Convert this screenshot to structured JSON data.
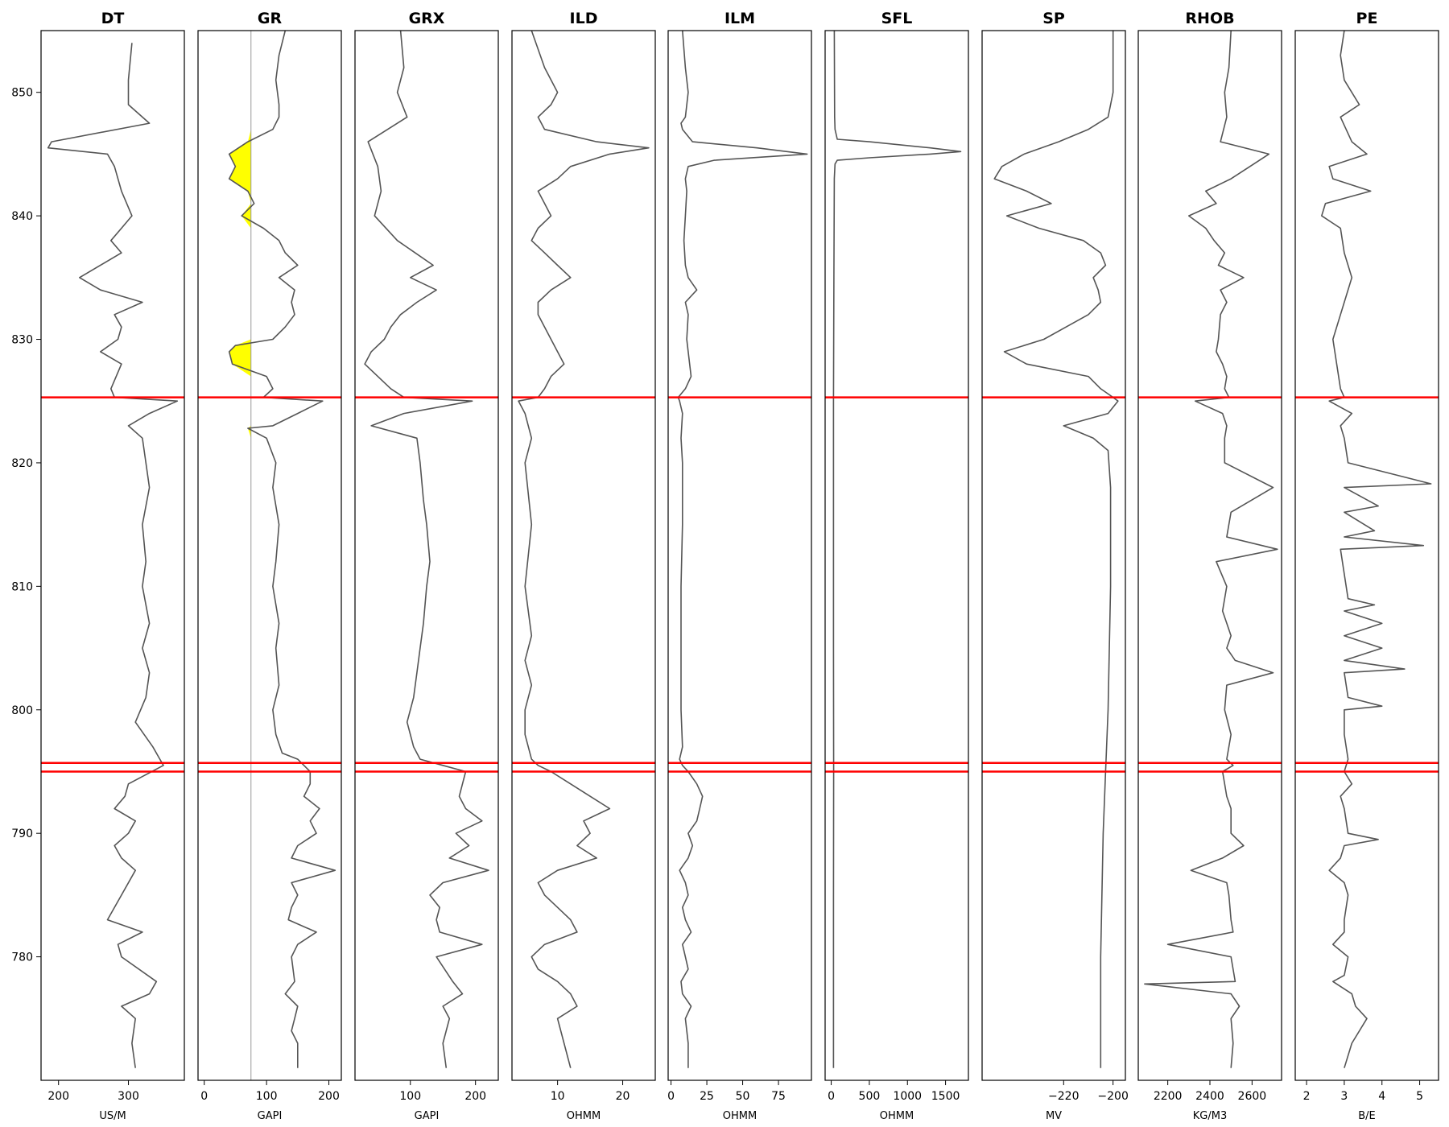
{
  "figure": {
    "type": "well-log",
    "depth_axis": {
      "ylim": [
        770,
        855
      ],
      "ticks": [
        780,
        790,
        800,
        810,
        820,
        830,
        840,
        850
      ]
    },
    "markers": [
      825.3,
      795.7,
      795.0
    ],
    "marker_color": "#ff0000",
    "curve_color": "#555555",
    "fill_color": "#ffff00"
  },
  "chart_data": [
    {
      "type": "line",
      "title": "DT",
      "xlabel": "US/M",
      "xlim": [
        175,
        380
      ],
      "ticks": [
        200,
        300
      ],
      "tick_labels": [
        "200",
        "300"
      ],
      "depth": [
        854,
        851,
        849,
        847.5,
        846,
        845.5,
        845,
        844,
        842,
        840,
        839,
        838,
        837,
        835,
        834,
        833,
        832,
        831,
        830,
        829,
        828,
        826,
        825.3,
        825,
        824,
        823,
        822,
        818,
        815,
        812,
        810,
        807,
        805,
        803,
        801,
        799,
        797,
        796,
        795.5,
        794,
        793,
        792,
        791,
        790,
        789,
        788,
        787,
        785,
        783,
        782,
        781,
        780,
        778,
        777,
        776,
        775,
        773,
        771
      ],
      "values": [
        305,
        300,
        300,
        330,
        190,
        185,
        270,
        280,
        290,
        305,
        290,
        275,
        290,
        230,
        260,
        320,
        280,
        290,
        285,
        260,
        290,
        275,
        280,
        370,
        330,
        300,
        320,
        330,
        320,
        325,
        320,
        330,
        320,
        330,
        325,
        310,
        335,
        345,
        350,
        300,
        295,
        280,
        310,
        300,
        280,
        290,
        310,
        290,
        270,
        320,
        285,
        290,
        340,
        330,
        290,
        310,
        305,
        310
      ]
    },
    {
      "type": "line",
      "title": "GR",
      "xlabel": "GAPI",
      "xlim": [
        -10,
        220
      ],
      "ticks": [
        0,
        100,
        200
      ],
      "tick_labels": [
        "0",
        "100",
        "200"
      ],
      "cutoff": 75,
      "depth": [
        855,
        853,
        851,
        849,
        848,
        847,
        846,
        845,
        844,
        843,
        842,
        841,
        840,
        839,
        838,
        837,
        836,
        835,
        834,
        833,
        832,
        831,
        830,
        829.5,
        829,
        828,
        827,
        826,
        825.3,
        825,
        824,
        823,
        822.8,
        822,
        820,
        818,
        815,
        812,
        810,
        807,
        805,
        802,
        800,
        798,
        796.5,
        796,
        795.5,
        795,
        794,
        793,
        792,
        791,
        790,
        789,
        788,
        787,
        786,
        785,
        784,
        783,
        782,
        781,
        780,
        778,
        777,
        776,
        775,
        774,
        773,
        771
      ],
      "values": [
        130,
        120,
        115,
        120,
        120,
        110,
        70,
        40,
        50,
        40,
        70,
        80,
        60,
        95,
        120,
        130,
        150,
        120,
        145,
        140,
        145,
        130,
        110,
        50,
        40,
        45,
        100,
        110,
        95,
        190,
        150,
        110,
        70,
        100,
        115,
        110,
        120,
        115,
        110,
        120,
        115,
        120,
        110,
        115,
        125,
        150,
        160,
        170,
        170,
        160,
        185,
        170,
        180,
        150,
        140,
        210,
        140,
        150,
        140,
        135,
        180,
        150,
        140,
        145,
        130,
        150,
        145,
        140,
        150,
        150
      ]
    },
    {
      "type": "line",
      "title": "GRX",
      "xlabel": "GAPI",
      "xlim": [
        15,
        235
      ],
      "ticks": [
        100,
        200
      ],
      "tick_labels": [
        "100",
        "200"
      ],
      "depth": [
        855,
        852,
        850,
        848,
        846,
        844,
        842,
        840,
        838,
        836,
        835,
        834,
        833,
        832,
        831,
        830,
        829,
        828,
        827,
        826,
        825.3,
        825,
        824,
        823,
        822,
        820,
        817,
        815,
        812,
        810,
        807,
        805,
        803,
        801,
        799,
        797,
        796,
        795.5,
        795,
        794,
        793,
        792,
        791,
        790,
        789,
        788,
        787,
        786,
        785,
        784,
        783,
        782,
        781,
        780,
        778,
        777,
        776,
        775,
        773,
        771
      ],
      "values": [
        85,
        90,
        80,
        95,
        35,
        50,
        55,
        45,
        80,
        135,
        100,
        140,
        110,
        85,
        70,
        60,
        40,
        30,
        50,
        70,
        90,
        195,
        90,
        40,
        110,
        115,
        120,
        125,
        130,
        125,
        120,
        115,
        110,
        105,
        95,
        105,
        115,
        150,
        185,
        180,
        175,
        185,
        210,
        170,
        190,
        160,
        220,
        150,
        130,
        145,
        140,
        145,
        210,
        140,
        165,
        180,
        150,
        160,
        150,
        155
      ]
    },
    {
      "type": "line",
      "title": "ILD",
      "xlabel": "OHMM",
      "xlim": [
        3,
        25
      ],
      "ticks": [
        10,
        20
      ],
      "tick_labels": [
        "10",
        "20"
      ],
      "depth": [
        855,
        852,
        850,
        849,
        848,
        847,
        846,
        845.5,
        845,
        844,
        843,
        842,
        841,
        840,
        839,
        838,
        837,
        836,
        835,
        834,
        833,
        832,
        831,
        830,
        829,
        828,
        827,
        826,
        825.3,
        825,
        824,
        822,
        820,
        815,
        810,
        806,
        804,
        802,
        800,
        798,
        796,
        795.5,
        795,
        794,
        793,
        792,
        791,
        790,
        789,
        788,
        787,
        786,
        785,
        784,
        783,
        782,
        781,
        780,
        779,
        778,
        777,
        776,
        775,
        773,
        771
      ],
      "values": [
        6,
        8,
        10,
        9,
        7,
        8,
        16,
        24,
        18,
        12,
        10,
        7,
        8,
        9,
        7,
        6,
        8,
        10,
        12,
        9,
        7,
        7,
        8,
        9,
        10,
        11,
        9,
        8,
        7,
        4,
        5,
        6,
        5,
        6,
        5,
        6,
        5,
        6,
        5,
        5,
        6,
        7,
        9,
        12,
        15,
        18,
        14,
        15,
        13,
        16,
        10,
        7,
        8,
        10,
        12,
        13,
        8,
        6,
        7,
        10,
        12,
        13,
        10,
        11,
        12
      ]
    },
    {
      "type": "line",
      "title": "ILM",
      "xlabel": "OHMM",
      "xlim": [
        -2,
        98
      ],
      "ticks": [
        0,
        25,
        50,
        75
      ],
      "tick_labels": [
        "0",
        "25",
        "50",
        "75"
      ],
      "depth": [
        855,
        852,
        850,
        848,
        847.5,
        847,
        846,
        845.5,
        845,
        844.5,
        844,
        843,
        842,
        840,
        838,
        836,
        835,
        834,
        833,
        832,
        830,
        829,
        828,
        827,
        826,
        825.3,
        825,
        824,
        822,
        820,
        815,
        810,
        805,
        800,
        797,
        796,
        795.5,
        795,
        794,
        793,
        792,
        791,
        790,
        789,
        788,
        787,
        786,
        785,
        784,
        783,
        782,
        781,
        780,
        779,
        778,
        777,
        776,
        775,
        773,
        771
      ],
      "values": [
        8,
        10,
        12,
        10,
        7,
        8,
        15,
        60,
        95,
        30,
        12,
        10,
        11,
        10,
        9,
        10,
        12,
        18,
        10,
        12,
        11,
        12,
        13,
        14,
        10,
        5,
        6,
        8,
        7,
        8,
        8,
        7,
        7,
        7,
        8,
        6,
        8,
        12,
        18,
        22,
        20,
        18,
        12,
        15,
        12,
        6,
        10,
        12,
        8,
        10,
        14,
        8,
        10,
        12,
        7,
        8,
        14,
        10,
        12,
        12
      ]
    },
    {
      "type": "line",
      "title": "SFL",
      "xlabel": "OHMM",
      "xlim": [
        -80,
        1800
      ],
      "ticks": [
        0,
        500,
        1000,
        1500
      ],
      "tick_labels": [
        "0",
        "500",
        "1000",
        "1500"
      ],
      "depth": [
        855,
        848,
        847,
        846.2,
        846,
        845.5,
        845.2,
        845,
        844.7,
        844.5,
        844.2,
        843,
        835,
        825,
        815,
        805,
        795,
        785,
        775,
        771
      ],
      "values": [
        40,
        45,
        50,
        80,
        500,
        1300,
        1700,
        1300,
        500,
        80,
        50,
        40,
        35,
        30,
        30,
        30,
        32,
        30,
        30,
        30
      ]
    },
    {
      "type": "line",
      "title": "SP",
      "xlabel": "MV",
      "xlim": [
        -253,
        -195
      ],
      "ticks": [
        -220,
        -200
      ],
      "tick_labels": [
        "−220",
        "−200"
      ],
      "depth": [
        855,
        850,
        848,
        847,
        846,
        845,
        844,
        843,
        842,
        841,
        840,
        839,
        838,
        837,
        836,
        835,
        834,
        833,
        832,
        831,
        830,
        829,
        828,
        827,
        826,
        825.3,
        825,
        824,
        823,
        822,
        821,
        818,
        810,
        800,
        795,
        790,
        780,
        771
      ],
      "values": [
        -200,
        -200,
        -202,
        -210,
        -222,
        -236,
        -245,
        -248,
        -235,
        -225,
        -243,
        -230,
        -212,
        -205,
        -203,
        -208,
        -206,
        -205,
        -210,
        -219,
        -228,
        -244,
        -235,
        -210,
        -205,
        -200,
        -198,
        -202,
        -220,
        -208,
        -202,
        -201,
        -201,
        -202,
        -203,
        -204,
        -205,
        -205
      ]
    },
    {
      "type": "line",
      "title": "RHOB",
      "xlabel": "KG/M3",
      "xlim": [
        2060,
        2740
      ],
      "ticks": [
        2200,
        2400,
        2600
      ],
      "tick_labels": [
        "2200",
        "2400",
        "2600"
      ],
      "depth": [
        855,
        852,
        850,
        848,
        846,
        845,
        844,
        843,
        842,
        841,
        840,
        839,
        838,
        837,
        836,
        835,
        834,
        833,
        832,
        830,
        829,
        828,
        827,
        826,
        825.3,
        825,
        824,
        823,
        822,
        820,
        818,
        816,
        814,
        813,
        812,
        810,
        808,
        806,
        805,
        804,
        803,
        802,
        800,
        798,
        796,
        795.5,
        795,
        794,
        793,
        792,
        790,
        789,
        788,
        787,
        786,
        785,
        783,
        782,
        781,
        780,
        778,
        777.8,
        777,
        776,
        775,
        773,
        771
      ],
      "values": [
        2500,
        2490,
        2470,
        2480,
        2450,
        2680,
        2590,
        2500,
        2380,
        2430,
        2300,
        2380,
        2420,
        2470,
        2440,
        2560,
        2450,
        2480,
        2450,
        2440,
        2430,
        2460,
        2480,
        2470,
        2490,
        2330,
        2460,
        2480,
        2470,
        2470,
        2700,
        2500,
        2480,
        2720,
        2430,
        2480,
        2460,
        2500,
        2480,
        2520,
        2700,
        2480,
        2470,
        2500,
        2480,
        2510,
        2460,
        2470,
        2480,
        2500,
        2500,
        2560,
        2460,
        2310,
        2480,
        2490,
        2500,
        2510,
        2200,
        2500,
        2520,
        2090,
        2500,
        2540,
        2500,
        2510,
        2500
      ]
    },
    {
      "type": "line",
      "title": "PE",
      "xlabel": "B/E",
      "xlim": [
        1.7,
        5.5
      ],
      "ticks": [
        2,
        3,
        4,
        5
      ],
      "tick_labels": [
        "2",
        "3",
        "4",
        "5"
      ],
      "depth": [
        855,
        853,
        851,
        849,
        848,
        846,
        845,
        844,
        843,
        842,
        841,
        840,
        839,
        837,
        835,
        833,
        832,
        830,
        828,
        826,
        825.3,
        825,
        824,
        823,
        822,
        820,
        818.3,
        818,
        816.5,
        816,
        814.5,
        814,
        813.3,
        813,
        811,
        809,
        808.5,
        808,
        807,
        806,
        805,
        804,
        803.3,
        803,
        801,
        800.3,
        800,
        798,
        796,
        795,
        794,
        793,
        792,
        790,
        789.5,
        789,
        788,
        787,
        786,
        785,
        783,
        782,
        781,
        780,
        778.5,
        778,
        777,
        776,
        775,
        773,
        771
      ],
      "values": [
        3.0,
        2.9,
        3.0,
        3.4,
        2.9,
        3.2,
        3.6,
        2.6,
        2.7,
        3.7,
        2.5,
        2.4,
        2.9,
        3.0,
        3.2,
        3.0,
        2.9,
        2.7,
        2.8,
        2.9,
        3.0,
        2.6,
        3.2,
        2.9,
        3.0,
        3.1,
        5.3,
        3.0,
        3.9,
        3.0,
        3.8,
        3.0,
        5.1,
        2.9,
        3.0,
        3.1,
        3.8,
        3.0,
        4.0,
        3.0,
        4.0,
        3.0,
        4.6,
        3.0,
        3.1,
        4.0,
        3.0,
        3.0,
        3.1,
        3.0,
        3.2,
        2.9,
        3.0,
        3.1,
        3.9,
        3.0,
        2.9,
        2.6,
        3.0,
        3.1,
        3.0,
        3.0,
        2.7,
        3.1,
        3.0,
        2.7,
        3.2,
        3.3,
        3.6,
        3.2,
        3.0
      ]
    }
  ]
}
